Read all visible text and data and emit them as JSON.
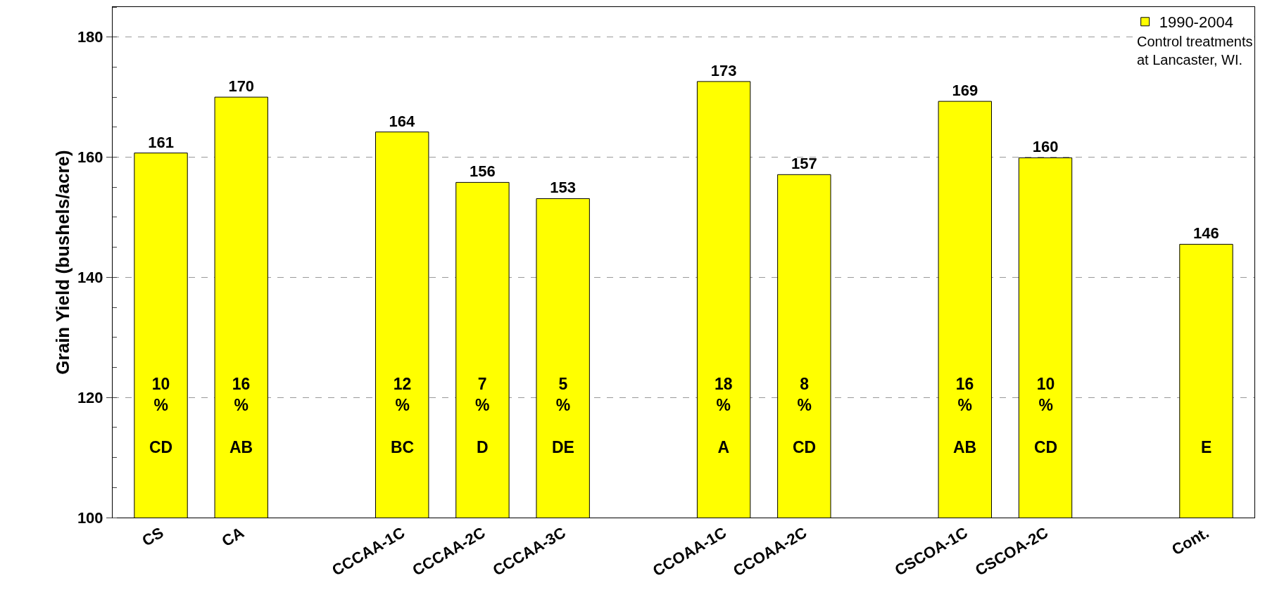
{
  "chart_data": {
    "type": "bar",
    "ylabel": "Grain Yield (bushels/acre)",
    "categories": [
      "CS",
      "CA",
      null,
      "CCCAA-1C",
      "CCCAA-2C",
      "CCCAA-3C",
      null,
      "CCOAA-1C",
      "CCOAA-2C",
      null,
      "CSCOA-1C",
      "CSCOA-2C",
      null,
      "Cont."
    ],
    "series": [
      {
        "name": "1990-2004",
        "color": "#ffff00",
        "values": [
          160.7,
          170,
          null,
          164.2,
          155.8,
          153.1,
          null,
          172.6,
          157.1,
          null,
          169.3,
          159.9,
          null,
          145.5
        ],
        "value_labels": [
          "161",
          "170",
          null,
          "164",
          "156",
          "153",
          null,
          "173",
          "157",
          null,
          "169",
          "160",
          null,
          "146"
        ]
      }
    ],
    "ylim": [
      100,
      185
    ],
    "yticks": [
      100,
      120,
      140,
      160,
      180
    ],
    "grid": "y",
    "legend": "top right",
    "annotations": [
      "Control treatments\nat Lancaster, WI.",
      "10\n%\n\nCD",
      "16\n%\n\nAB",
      "12\n%\n\nBC",
      "7\n%\n\nD",
      "5\n%\n\nDE",
      "18\n%\n\nA",
      "8\n%\n\nCD",
      "16\n%\n\nAB",
      "10\n%\n\nCD",
      "E"
    ]
  }
}
